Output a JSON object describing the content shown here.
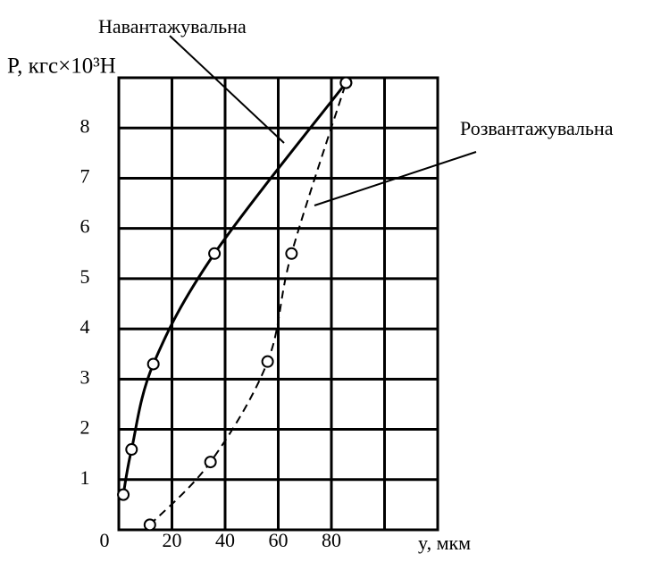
{
  "chart_data": {
    "type": "line",
    "y_label": "P, кгс×10³H",
    "x_label": "y, мкм",
    "xlim": [
      0,
      120
    ],
    "ylim": [
      0,
      9
    ],
    "xticks": [
      0,
      20,
      40,
      60,
      80
    ],
    "yticks": [
      1,
      2,
      3,
      4,
      5,
      6,
      7,
      8
    ],
    "grid": true,
    "series": [
      {
        "name": "Навантажувальна",
        "color": "#000000",
        "dashed": false,
        "x": [
          1.7,
          4.8,
          13,
          36,
          85.5
        ],
        "values": [
          0.7,
          1.6,
          3.3,
          5.5,
          8.9
        ]
      },
      {
        "name": "Розвантажувальна",
        "color": "#000000",
        "dashed": true,
        "x": [
          11.7,
          34.5,
          56,
          65,
          85.5
        ],
        "values": [
          0.1,
          1.35,
          3.35,
          5.5,
          8.9
        ]
      }
    ]
  }
}
